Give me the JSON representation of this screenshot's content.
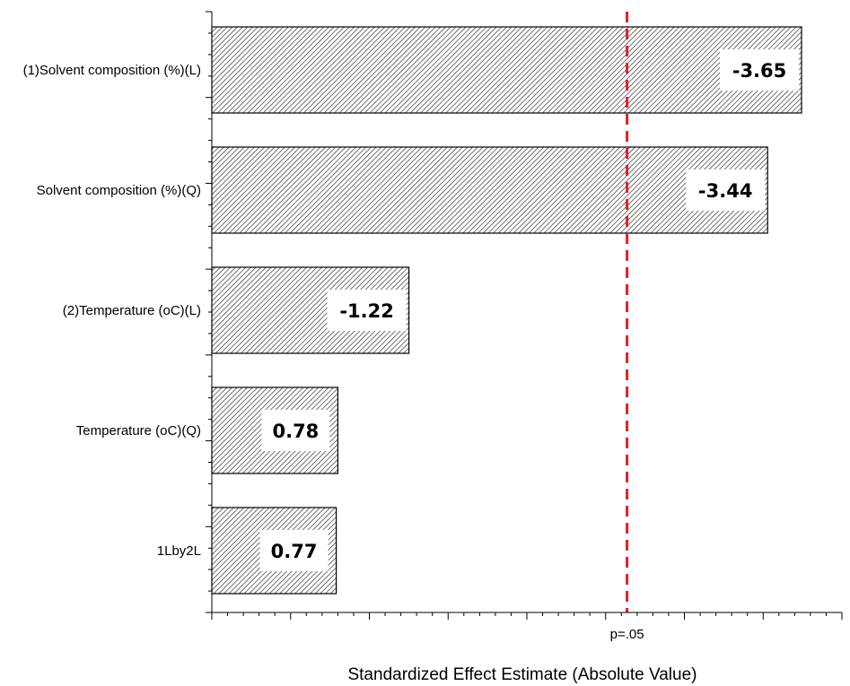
{
  "chart_data": {
    "type": "bar",
    "orientation": "horizontal",
    "categories": [
      "(1)Solvent composition (%)(L)",
      "Solvent composition (%)(Q)",
      "(2)Temperature (oC)(L)",
      "Temperature (oC)(Q)",
      "1Lby2L"
    ],
    "values": [
      3.65,
      3.44,
      1.22,
      0.78,
      0.77
    ],
    "data_labels": [
      "-3.65",
      "-3.44",
      "-1.22",
      "0.78",
      "0.77"
    ],
    "xlabel": "Standardized Effect Estimate (Absolute Value)",
    "ylabel": "",
    "xlim": [
      0,
      3.9
    ],
    "reference_line": {
      "value": 2.57,
      "label": "p=.05",
      "color": "#e02020",
      "style": "dashed"
    },
    "bar_fill": "hatched",
    "grid": false
  }
}
